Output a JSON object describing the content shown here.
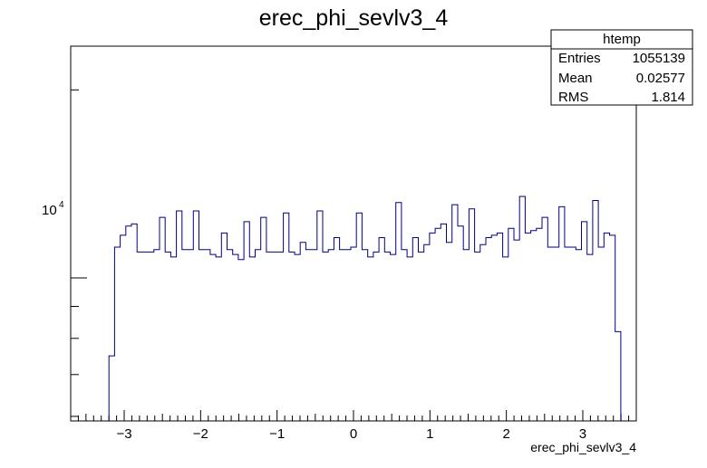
{
  "chart_data": {
    "type": "histogram",
    "title": "erec_phi_sevlv3_4",
    "xlabel": "erec_phi_sevlv3_4",
    "ylabel": "",
    "xlim": [
      -3.7,
      3.7
    ],
    "ylim": [
      5900,
      23500
    ],
    "y_scale": "log",
    "line_color": "#000080",
    "bin_width": 0.0736,
    "bin_start": -3.2,
    "values": [
      7500,
      11200,
      11700,
      12100,
      12200,
      11000,
      11000,
      11000,
      11100,
      12500,
      11000,
      10800,
      12800,
      11100,
      11100,
      12800,
      11100,
      11100,
      10900,
      10800,
      11800,
      11100,
      10900,
      10700,
      12300,
      10800,
      11100,
      12500,
      11000,
      11000,
      11000,
      12700,
      11000,
      10900,
      11400,
      11100,
      11100,
      12800,
      11000,
      11100,
      11600,
      11100,
      11100,
      11200,
      12700,
      11100,
      10800,
      11000,
      11600,
      11000,
      10900,
      13200,
      11100,
      10800,
      11600,
      11000,
      11300,
      11800,
      12000,
      12200,
      11400,
      13100,
      12100,
      11100,
      12900,
      11000,
      11300,
      11600,
      11700,
      11800,
      10800,
      12000,
      11500,
      13500,
      11800,
      11900,
      12000,
      12500,
      11200,
      11200,
      13000,
      11200,
      11200,
      11100,
      12300,
      10900,
      13300,
      11200,
      11800,
      11700,
      8200
    ],
    "x_ticks": [
      -3,
      -2,
      -1,
      0,
      1,
      2,
      3
    ],
    "x_tick_labels": [
      "−3",
      "−2",
      "−1",
      "0",
      "1",
      "2",
      "3"
    ],
    "y_ticks": [
      10000
    ],
    "y_tick_labels": [
      "10",
      "4"
    ],
    "legend": "top-right",
    "stats": {
      "name": "htemp",
      "rows": [
        {
          "label": "Entries",
          "value": "1055139"
        },
        {
          "label": "Mean",
          "value": "0.02577"
        },
        {
          "label": "RMS",
          "value": "1.814"
        }
      ]
    }
  }
}
